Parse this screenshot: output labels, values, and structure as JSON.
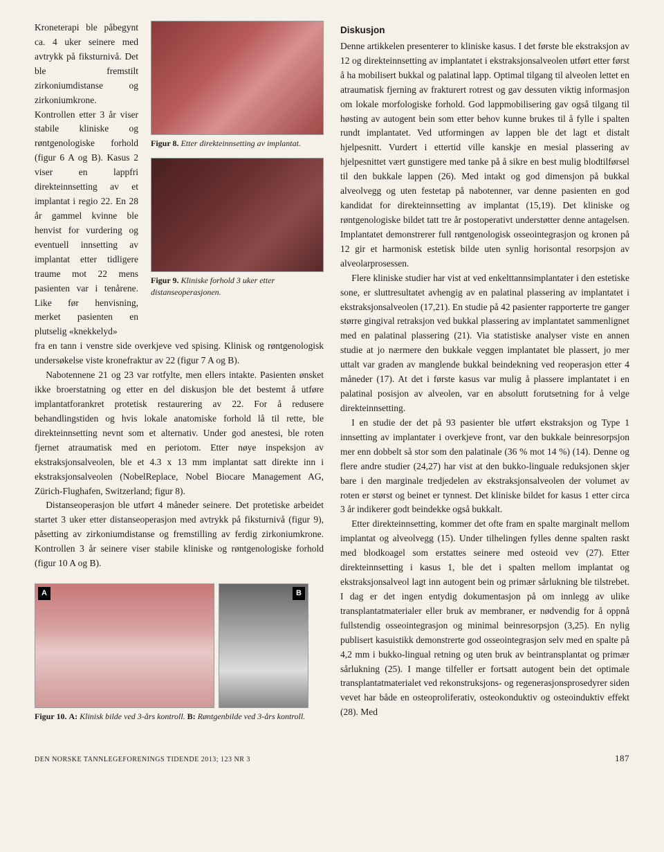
{
  "left": {
    "narrow_text": "Kroneterapi ble påbegynt ca. 4 uker seinere med avtrykk på fiksturnivå. Det ble fremstilt zirkoniumdistanse og zirkoniumkrone. Kontrollen etter 3 år viser stabile kliniske og røntgenologiske forhold (figur 6 A og B). Kasus 2 viser en lappfri direkteinnsetting av et implantat i regio 22. En 28 år gammel kvinne ble henvist for vurdering og eventuell innsetting av implantat etter tidligere traume mot 22 mens pasienten var i tenårene. Like før henvisning, merket pasienten en plutselig «knekkelyd»",
    "fig8_label": "Figur 8.",
    "fig8_caption": "Etter direkteinnsetting av implantat.",
    "fig9_label": "Figur 9.",
    "fig9_caption": "Kliniske forhold 3 uker etter distanseoperasjonen.",
    "para2": "fra en tann i venstre side overkjeve ved spising. Klinisk og røntgenologisk undersøkelse viste kronefraktur av 22 (figur 7 A og B).",
    "para3": "Nabotennene 21 og 23 var rotfylte, men ellers intakte. Pasienten ønsket ikke broerstatning og etter en del diskusjon ble det bestemt å utføre implantatforankret protetisk restaurering av 22. For å redusere behandlingstiden og hvis lokale anatomiske forhold lå til rette, ble direkteinnsetting nevnt som et alternativ. Under god anestesi, ble roten fjernet atraumatisk med en periotom. Etter nøye inspeksjon av ekstraksjonsalveolen, ble et 4.3 x 13 mm implantat satt direkte inn i ekstraksjonsalveolen (NobelReplace, Nobel Biocare Management AG, Zürich-Flughafen, Switzerland; figur 8).",
    "para4": "Distanseoperasjon ble utført 4 måneder seinere. Det protetiske arbeidet startet 3 uker etter distanseoperasjon med avtrykk på fiksturnivå (figur 9), påsetting av zirkoniumdistanse og fremstilling av ferdig zirkoniumkrone. Kontrollen 3 år seinere viser stabile kliniske og røntgenologiske forhold (figur 10 A og B).",
    "fig10_label": "Figur 10.",
    "fig10_caption_a_lbl": "A:",
    "fig10_caption_a": "Klinisk bilde ved 3-års kontroll.",
    "fig10_caption_b_lbl": "B:",
    "fig10_caption_b": "Røntgenbilde ved 3-års kontroll.",
    "label_a": "A",
    "label_b": "B"
  },
  "right": {
    "heading": "Diskusjon",
    "para1": "Denne artikkelen presenterer to kliniske kasus. I det første ble ekstraksjon av 12 og direkteinnsetting av implantatet i ekstraksjonsalveolen utført etter først å ha mobilisert bukkal og palatinal lapp. Optimal tilgang til alveolen lettet en atraumatisk fjerning av frakturert rotrest og gav dessuten viktig informasjon om lokale morfologiske forhold. God lappmobilisering gav også tilgang til høsting av autogent bein som etter behov kunne brukes til å fylle i spalten rundt implantatet. Ved utformingen av lappen ble det lagt et distalt hjelpesnitt. Vurdert i ettertid ville kanskje en mesial plassering av hjelpesnittet vært gunstigere med tanke på å sikre en best mulig blodtilførsel til den bukkale lappen (26). Med intakt og god dimensjon på bukkal alveolvegg og uten festetap på nabotenner, var denne pasienten en god kandidat for direkteinnsetting av implantat (15,19). Det kliniske og røntgenologiske bildet tatt tre år postoperativt understøtter denne antagelsen. Implantatet demonstrerer full røntgenologisk osseointegrasjon og kronen på 12 gir et harmonisk estetisk bilde uten synlig horisontal resorpsjon av alveolarprosessen.",
    "para2": "Flere kliniske studier har vist at ved enkelttannsimplantater i den estetiske sone, er sluttresultatet avhengig av en palatinal plassering av implantatet i ekstraksjonsalveolen (17,21). En studie på 42 pasienter rapporterte tre ganger større gingival retraksjon ved bukkal plassering av implantatet sammenlignet med en palatinal plassering (21). Via statistiske analyser viste en annen studie at jo nærmere den bukkale veggen implantatet ble plassert, jo mer uttalt var graden av manglende bukkal beindekning ved reoperasjon etter 4 måneder (17). At det i første kasus var mulig å plassere implantatet i en palatinal posisjon av alveolen, var en absolutt forutsetning for å velge direkteinnsetting.",
    "para3": "I en studie der det på 93 pasienter ble utført ekstraksjon og Type 1 innsetting av implantater i overkjeve front, var den bukkale beinresorpsjon mer enn dobbelt så stor som den palatinale (36 % mot 14 %) (14). Denne og flere andre studier (24,27) har vist at den bukko-linguale reduksjonen skjer bare i den marginale tredjedelen av ekstraksjonsalveolen der volumet av roten er størst og beinet er tynnest. Det kliniske bildet for kasus 1 etter circa 3 år indikerer godt beindekke også bukkalt.",
    "para4": "Etter direkteinnsetting, kommer det ofte fram en spalte marginalt mellom implantat og alveolvegg (15). Under tilhelingen fylles denne spalten raskt med blodkoagel som erstattes seinere med osteoid vev (27). Etter direkteinnsetting i kasus 1, ble det i spalten mellom implantat og ekstraksjonsalveol lagt inn autogent bein og primær sårlukning ble tilstrebet. I dag er det ingen entydig dokumentasjon på om innlegg av ulike transplantatmaterialer eller bruk av membraner, er nødvendig for å oppnå fullstendig osseointegrasjon og minimal beinresorpsjon (3,25). En nylig publisert kasuistikk demonstrerte god osseointegrasjon selv med en spalte på 4,2 mm i bukko-lingual retning og uten bruk av beintransplantat og primær sårlukning (25). I mange tilfeller er fortsatt autogent bein det optimale transplantatmaterialet ved rekonstruksjons- og regenerasjonsprosedyrer siden vevet har både en osteoproliferativ, osteokonduktiv og osteoinduktiv effekt (28). Med"
  },
  "footer": {
    "journal_pre": "D",
    "journal_text": "EN NORSKE TANNLEGEFORENINGS",
    "tidende": "TIDENDE",
    "year_issue": "2013; 123",
    "nr": "NR",
    "issue_no": "3",
    "page": "187"
  }
}
